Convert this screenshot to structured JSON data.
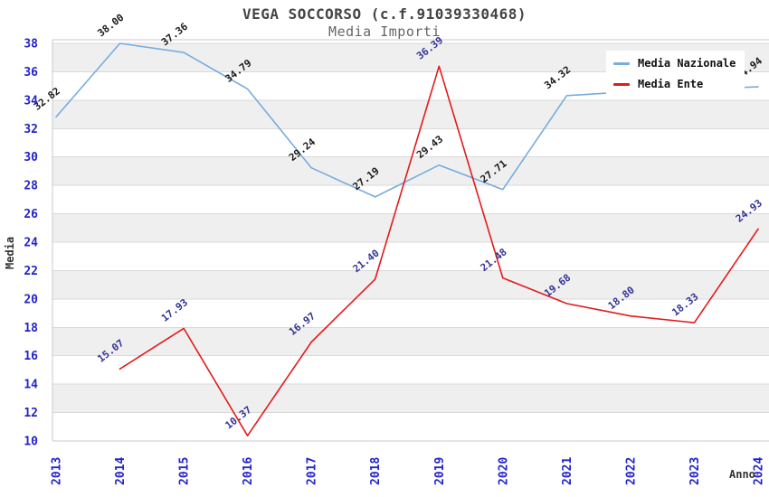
{
  "header": {
    "title": "VEGA SOCCORSO (c.f.91039330468)",
    "subtitle": "Media Importi"
  },
  "legend": {
    "items": [
      {
        "label": "Media Nazionale",
        "color": "#76ACDF"
      },
      {
        "label": "Media Ente",
        "color": "#E31A1A"
      }
    ]
  },
  "axes": {
    "y_label": "Media",
    "x_label": "Anno",
    "y_ticks": [
      10,
      12,
      14,
      16,
      18,
      20,
      22,
      24,
      26,
      28,
      30,
      32,
      34,
      36,
      38
    ],
    "x_ticks": [
      "2013",
      "2014",
      "2015",
      "2016",
      "2017",
      "2018",
      "2019",
      "2020",
      "2021",
      "2022",
      "2023",
      "2024"
    ],
    "tick_color": "#2323CC"
  },
  "colors": {
    "band_gray": "#EFEFEF",
    "gridline": "#D9D9D9",
    "border": "#C9C9C9"
  },
  "chart_data": {
    "type": "line",
    "title": "VEGA SOCCORSO (c.f.91039330468)",
    "subtitle": "Media Importi",
    "xlabel": "Anno",
    "ylabel": "Media",
    "x": [
      2013,
      2014,
      2015,
      2016,
      2017,
      2018,
      2019,
      2020,
      2021,
      2022,
      2023,
      2024
    ],
    "ylim": [
      10,
      38.4
    ],
    "ytick_step": 2,
    "grid": "horizontal gridlines every 2 units with alternating 2-unit gray/white bands",
    "legend_position": "top-right",
    "series": [
      {
        "name": "Media Nazionale",
        "color": "#76ACDF",
        "label_color": "#1A1A1A",
        "values": [
          32.82,
          38.0,
          37.36,
          34.79,
          29.24,
          27.19,
          29.43,
          27.71,
          34.32,
          34.6,
          34.76,
          34.94
        ],
        "label_hidden_indices": [
          9,
          10
        ]
      },
      {
        "name": "Media Ente",
        "color": "#E31A1A",
        "label_color": "#333399",
        "values": [
          null,
          15.07,
          17.93,
          10.37,
          16.97,
          21.4,
          36.39,
          21.48,
          19.68,
          18.8,
          18.33,
          24.93
        ],
        "label_hidden_indices": []
      }
    ]
  }
}
